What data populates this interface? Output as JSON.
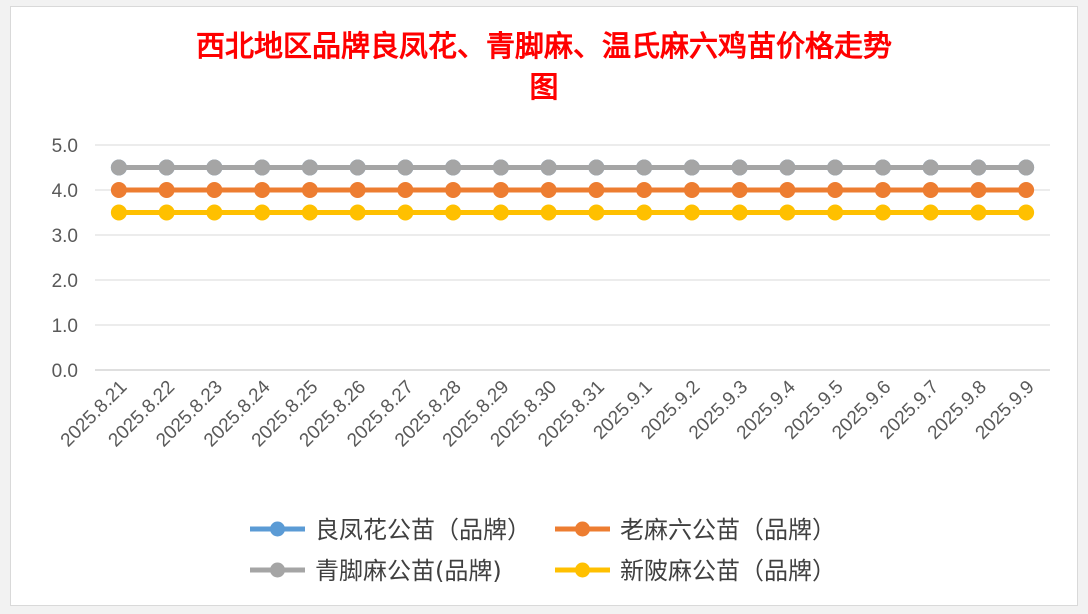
{
  "chart_data": {
    "type": "line",
    "title_line1": "西北地区品牌良凤花、青脚麻、温氏麻六鸡苗价格走势",
    "title_line2": "图",
    "categories": [
      "2025.8.21",
      "2025.8.22",
      "2025.8.23",
      "2025.8.24",
      "2025.8.25",
      "2025.8.26",
      "2025.8.27",
      "2025.8.28",
      "2025.8.29",
      "2025.8.30",
      "2025.8.31",
      "2025.9.1",
      "2025.9.2",
      "2025.9.3",
      "2025.9.4",
      "2025.9.5",
      "2025.9.6",
      "2025.9.7",
      "2025.9.8",
      "2025.9.9"
    ],
    "y_ticks": [
      "5.0",
      "4.0",
      "3.0",
      "2.0",
      "1.0",
      "0.0"
    ],
    "ylim": [
      0,
      5
    ],
    "grid": true,
    "legend_position": "bottom",
    "series": [
      {
        "name": "良凤花公苗（品牌）",
        "color": "#5b9bd5",
        "values": [
          4.5,
          4.5,
          4.5,
          4.5,
          4.5,
          4.5,
          4.5,
          4.5,
          4.5,
          4.5,
          4.5,
          4.5,
          4.5,
          4.5,
          4.5,
          4.5,
          4.5,
          4.5,
          4.5,
          4.5
        ]
      },
      {
        "name": "老麻六公苗（品牌）",
        "color": "#ed7d31",
        "values": [
          4.0,
          4.0,
          4.0,
          4.0,
          4.0,
          4.0,
          4.0,
          4.0,
          4.0,
          4.0,
          4.0,
          4.0,
          4.0,
          4.0,
          4.0,
          4.0,
          4.0,
          4.0,
          4.0,
          4.0
        ]
      },
      {
        "name": "青脚麻公苗(品牌)",
        "color": "#a5a5a5",
        "values": [
          4.5,
          4.5,
          4.5,
          4.5,
          4.5,
          4.5,
          4.5,
          4.5,
          4.5,
          4.5,
          4.5,
          4.5,
          4.5,
          4.5,
          4.5,
          4.5,
          4.5,
          4.5,
          4.5,
          4.5
        ]
      },
      {
        "name": "新陂麻公苗（品牌）",
        "color": "#ffc000",
        "values": [
          3.5,
          3.5,
          3.5,
          3.5,
          3.5,
          3.5,
          3.5,
          3.5,
          3.5,
          3.5,
          3.5,
          3.5,
          3.5,
          3.5,
          3.5,
          3.5,
          3.5,
          3.5,
          3.5,
          3.5
        ]
      }
    ]
  }
}
